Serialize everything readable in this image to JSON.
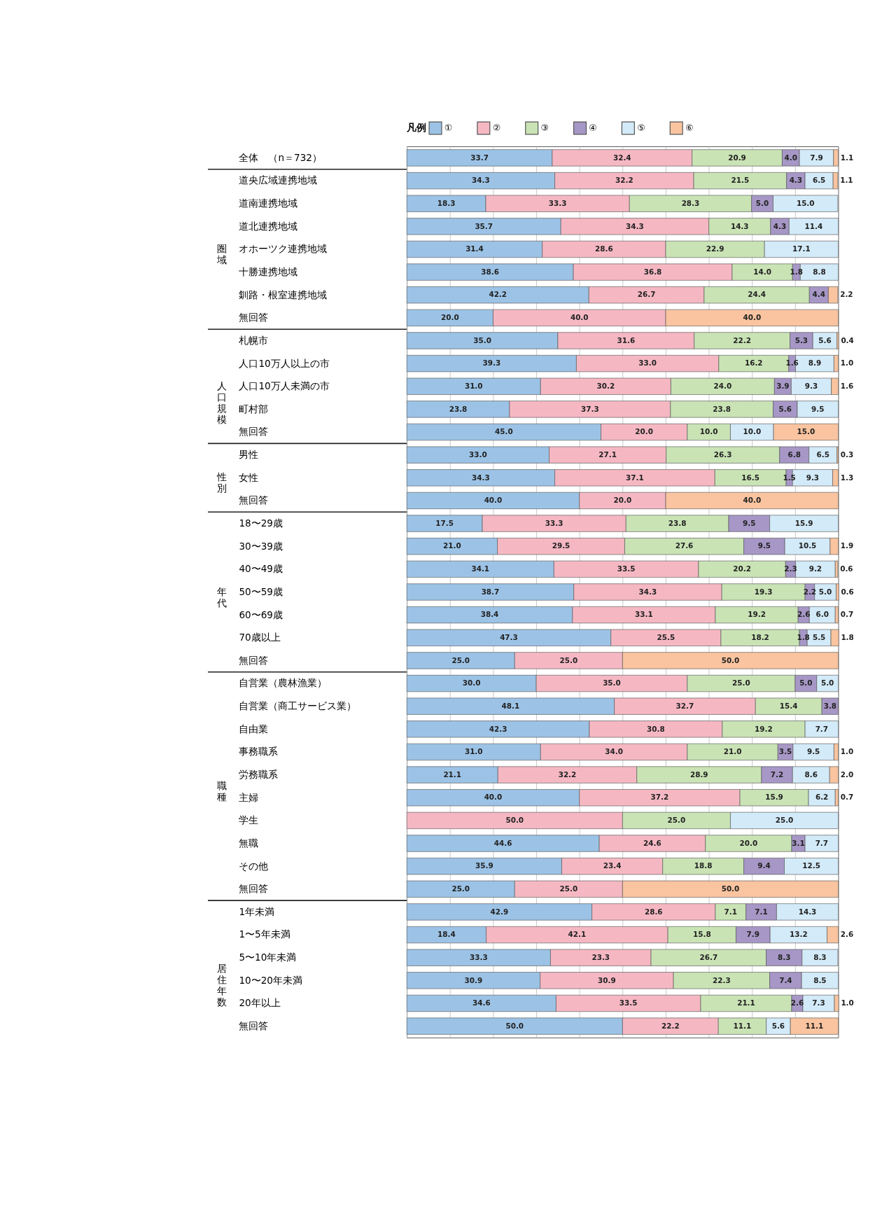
{
  "chart_data": {
    "type": "bar",
    "orientation": "horizontal",
    "stacked": true,
    "legend_title": "凡例",
    "legend": "top",
    "grid": "x",
    "tick_labels": "y",
    "xlim": [
      0,
      100
    ],
    "xticks": [
      {
        "value": 0,
        "label": null
      },
      {
        "value": 10,
        "label": null
      },
      {
        "value": 20,
        "label": null
      },
      {
        "value": 30,
        "label": null
      },
      {
        "value": 40,
        "label": null
      },
      {
        "value": 50,
        "label": null
      },
      {
        "value": 60,
        "label": null
      },
      {
        "value": 70,
        "label": null
      },
      {
        "value": 80,
        "label": null
      },
      {
        "value": 90,
        "label": null
      },
      {
        "value": 100,
        "label": null
      }
    ],
    "categories": [
      "全体　（n＝732）",
      "道央広域連携地域",
      "道南連携地域",
      "道北連携地域",
      "オホーツク連携地域",
      "十勝連携地域",
      "釧路・根室連携地域",
      "無回答",
      "札幌市",
      "人口10万人以上の市",
      "人口10万人未満の市",
      "町村部",
      "無回答",
      "男性",
      "女性",
      "無回答",
      "18〜29歳",
      "30〜39歳",
      "40〜49歳",
      "50〜59歳",
      "60〜69歳",
      "70歳以上",
      "無回答",
      "自営業（農林漁業）",
      "自営業（商工サービス業）",
      "自由業",
      "事務職系",
      "労務職系",
      "主婦",
      "学生",
      "無職",
      "その他",
      "無回答",
      "1年未満",
      "1〜5年未満",
      "5〜10年未満",
      "10〜20年未満",
      "20年以上",
      "無回答"
    ],
    "annotations": [
      "圏域",
      "人口規模",
      "性別",
      "年代",
      "職種",
      "居住年数"
    ],
    "series": [
      {
        "name": "①",
        "color": "#9cc3e6",
        "values": [
          33.7,
          34.3,
          18.3,
          35.7,
          31.4,
          38.6,
          42.2,
          20.0,
          35.0,
          39.3,
          31.0,
          23.8,
          45.0,
          33.0,
          34.3,
          40.0,
          17.5,
          21.0,
          34.1,
          38.7,
          38.4,
          47.3,
          25.0,
          30.0,
          48.1,
          42.3,
          31.0,
          21.1,
          40.0,
          null,
          44.6,
          35.9,
          25.0,
          42.9,
          18.4,
          33.3,
          30.9,
          34.6,
          50.0
        ],
        "value_labels": [
          "33.7",
          "34.3",
          "18.3",
          "35.7",
          "31.4",
          "38.6",
          "42.2",
          "20.0",
          "35.0",
          "39.3",
          "31.0",
          "23.8",
          "45.0",
          "33.0",
          "34.3",
          "40.0",
          "17.5",
          "21.0",
          "34.1",
          "38.7",
          "38.4",
          "47.3",
          "25.0",
          "30.0",
          "48.1",
          "42.3",
          "31.0",
          "21.1",
          "40.0",
          null,
          "44.6",
          "35.9",
          "25.0",
          "42.9",
          "18.4",
          "33.3",
          "30.9",
          "34.6",
          "50.0"
        ]
      },
      {
        "name": "②",
        "color": "#f5b8c3",
        "values": [
          32.4,
          32.2,
          33.3,
          34.3,
          28.6,
          36.8,
          26.7,
          40.0,
          31.6,
          33.0,
          30.2,
          37.3,
          20.0,
          27.1,
          37.1,
          20.0,
          33.3,
          29.5,
          33.5,
          34.3,
          33.1,
          25.5,
          25.0,
          35.0,
          32.7,
          30.8,
          34.0,
          32.2,
          37.2,
          50.0,
          24.6,
          23.4,
          25.0,
          28.6,
          42.1,
          23.3,
          30.9,
          33.5,
          22.2
        ],
        "value_labels": [
          "32.4",
          "32.2",
          "33.3",
          "34.3",
          "28.6",
          "36.8",
          "26.7",
          "40.0",
          "31.6",
          "33.0",
          "30.2",
          "37.3",
          "20.0",
          "27.1",
          "37.1",
          "20.0",
          "33.3",
          "29.5",
          "33.5",
          "34.3",
          "33.1",
          "25.5",
          "25.0",
          "35.0",
          "32.7",
          "30.8",
          "34.0",
          "32.2",
          "37.2",
          "50.0",
          "24.6",
          "23.4",
          "25.0",
          "28.6",
          "42.1",
          "23.3",
          "30.9",
          "33.5",
          "22.2"
        ]
      },
      {
        "name": "③",
        "color": "#c9e3b5",
        "values": [
          20.9,
          21.5,
          28.3,
          14.3,
          22.9,
          14.0,
          24.4,
          null,
          22.2,
          16.2,
          24.0,
          23.8,
          10.0,
          26.3,
          16.5,
          null,
          23.8,
          27.6,
          20.2,
          19.3,
          19.2,
          18.2,
          null,
          25.0,
          15.4,
          19.2,
          21.0,
          28.9,
          15.9,
          25.0,
          20.0,
          18.8,
          null,
          7.1,
          15.8,
          26.7,
          22.3,
          21.1,
          11.1
        ],
        "value_labels": [
          "20.9",
          "21.5",
          "28.3",
          "14.3",
          "22.9",
          "14.0",
          "24.4",
          null,
          "22.2",
          "16.2",
          "24.0",
          "23.8",
          "10.0",
          "26.3",
          "16.5",
          null,
          "23.8",
          "27.6",
          "20.2",
          "19.3",
          "19.2",
          "18.2",
          null,
          "25.0",
          "15.4",
          "19.2",
          "21.0",
          "28.9",
          "15.9",
          "25.0",
          "20.0",
          "18.8",
          null,
          "7.1",
          "15.8",
          "26.7",
          "22.3",
          "21.1",
          "11.1"
        ]
      },
      {
        "name": "④",
        "color": "#a697c6",
        "values": [
          4.0,
          4.3,
          5.0,
          4.3,
          null,
          1.8,
          4.4,
          null,
          5.3,
          1.6,
          3.9,
          5.6,
          null,
          6.8,
          1.5,
          null,
          9.5,
          9.5,
          2.3,
          2.2,
          2.6,
          1.8,
          null,
          5.0,
          3.8,
          null,
          3.5,
          7.2,
          null,
          null,
          3.1,
          9.4,
          null,
          7.1,
          7.9,
          8.3,
          7.4,
          2.6,
          null
        ],
        "value_labels": [
          "4.0",
          "4.3",
          "5.0",
          "4.3",
          null,
          "1.8",
          "4.4",
          null,
          "5.3",
          "1.6",
          "3.9",
          "5.6",
          null,
          "6.8",
          "1.5",
          null,
          "9.5",
          "9.5",
          "2.3",
          "2.2",
          "2.6",
          "1.8",
          null,
          "5.0",
          "3.8",
          null,
          "3.5",
          "7.2",
          null,
          null,
          "3.1",
          "9.4",
          null,
          "7.1",
          "7.9",
          "8.3",
          "7.4",
          "2.6",
          null
        ]
      },
      {
        "name": "⑤",
        "color": "#d3eaf8",
        "values": [
          7.9,
          6.5,
          15.0,
          11.4,
          17.1,
          8.8,
          null,
          null,
          5.6,
          8.9,
          9.3,
          9.5,
          10.0,
          6.5,
          9.3,
          null,
          15.9,
          10.5,
          9.2,
          5.0,
          6.0,
          5.5,
          null,
          5.0,
          null,
          7.7,
          9.5,
          8.6,
          6.2,
          25.0,
          7.7,
          12.5,
          null,
          14.3,
          13.2,
          8.3,
          8.5,
          7.3,
          5.6
        ],
        "value_labels": [
          "7.9",
          "6.5",
          "15.0",
          "11.4",
          "17.1",
          "8.8",
          null,
          null,
          "5.6",
          "8.9",
          "9.3",
          "9.5",
          "10.0",
          "6.5",
          "9.3",
          null,
          "15.9",
          "10.5",
          "9.2",
          "5.0",
          "6.0",
          "5.5",
          null,
          "5.0",
          null,
          "7.7",
          "9.5",
          "8.6",
          "6.2",
          "25.0",
          "7.7",
          "12.5",
          null,
          "14.3",
          "13.2",
          "8.3",
          "8.5",
          "7.3",
          "5.6"
        ]
      },
      {
        "name": "⑥",
        "color": "#f9c49f",
        "values": [
          1.1,
          1.1,
          null,
          null,
          null,
          null,
          2.2,
          40.0,
          0.4,
          1.0,
          1.6,
          null,
          15.0,
          0.3,
          1.3,
          40.0,
          null,
          1.9,
          0.6,
          0.6,
          0.7,
          1.8,
          50.0,
          null,
          null,
          null,
          1.0,
          2.0,
          0.7,
          null,
          null,
          null,
          50.0,
          null,
          2.6,
          null,
          null,
          1.0,
          11.1
        ],
        "value_labels": [
          "1.1",
          "1.1",
          null,
          null,
          null,
          null,
          "2.2",
          "40.0",
          "0.4",
          "1.0",
          "1.6",
          null,
          "15.0",
          "0.3",
          "1.3",
          "40.0",
          null,
          "1.9",
          "0.6",
          "0.6",
          "0.7",
          "1.8",
          "50.0",
          null,
          null,
          null,
          "1.0",
          "2.0",
          "0.7",
          null,
          null,
          null,
          "50.0",
          null,
          "2.6",
          null,
          null,
          "1.0",
          "11.1"
        ]
      }
    ]
  }
}
